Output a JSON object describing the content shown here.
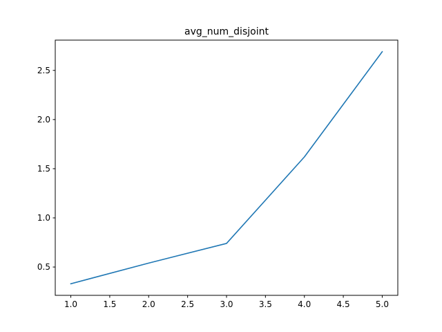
{
  "chart_data": {
    "type": "line",
    "title": "avg_num_disjoint",
    "xlabel": "",
    "ylabel": "",
    "x": [
      1.0,
      2.0,
      3.0,
      4.0,
      5.0
    ],
    "series": [
      {
        "values": [
          0.33,
          0.54,
          0.74,
          1.62,
          2.69
        ],
        "color": "#1f77b4"
      }
    ],
    "xlim": [
      0.8,
      5.2
    ],
    "ylim": [
      0.212,
      2.808
    ],
    "xticks": [
      1.0,
      1.5,
      2.0,
      2.5,
      3.0,
      3.5,
      4.0,
      4.5,
      5.0
    ],
    "xtick_labels": [
      "1.0",
      "1.5",
      "2.0",
      "2.5",
      "3.0",
      "3.5",
      "4.0",
      "4.5",
      "5.0"
    ],
    "yticks": [
      0.5,
      1.0,
      1.5,
      2.0,
      2.5
    ],
    "ytick_labels": [
      "0.5",
      "1.0",
      "1.5",
      "2.0",
      "2.5"
    ],
    "grid": false,
    "legend": "none"
  }
}
